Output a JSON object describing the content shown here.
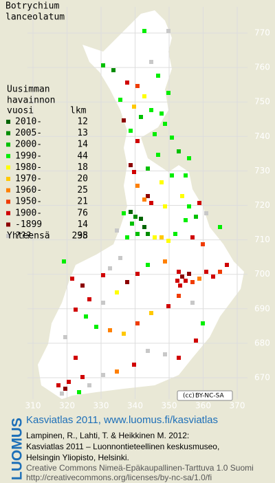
{
  "title": [
    "Botrychium",
    "lanceolatum"
  ],
  "legend": {
    "heading": [
      "Uusimman",
      "havainnon",
      "vuosi"
    ],
    "count_heading": "lkm",
    "rows": [
      {
        "label": "2010-",
        "count": 12,
        "color": "#006400"
      },
      {
        "label": "2005-",
        "count": 13,
        "color": "#008c00"
      },
      {
        "label": "2000-",
        "count": 14,
        "color": "#00c000"
      },
      {
        "label": "1990-",
        "count": 44,
        "color": "#00ee00"
      },
      {
        "label": "1980-",
        "count": 18,
        "color": "#ffff00"
      },
      {
        "label": "1970-",
        "count": 20,
        "color": "#ffc800"
      },
      {
        "label": "1960-",
        "count": 25,
        "color": "#ff8000"
      },
      {
        "label": "1950-",
        "count": 21,
        "color": "#f03c00"
      },
      {
        "label": "1900-",
        "count": 76,
        "color": "#d00000"
      },
      {
        "label": "-1899",
        "count": 14,
        "color": "#8c0000"
      },
      {
        "label": "???",
        "count": 38,
        "color": "#c8c8c8"
      }
    ],
    "total_label": "Yhteensä",
    "total": 295
  },
  "axes": {
    "y_labels": [
      770,
      760,
      750,
      740,
      730,
      720,
      710,
      700,
      690,
      680,
      670
    ],
    "x_labels": [
      310,
      320,
      330,
      340,
      350,
      360,
      370
    ]
  },
  "license_badge": "BY-NC-SA",
  "footer": {
    "logo": "LUOMUS",
    "link": "Kasviatlas 2011, www.luomus.fi/kasviatlas",
    "citation": [
      "Lampinen, R., Lahti, T. & Heikkinen M. 2012:",
      "Kasviatlas 2011 – Luonnontieteellinen keskusmuseo,",
      "Helsingin Yliopisto, Helsinki."
    ],
    "license": [
      "Creative Commons Nimeä-Epäkaupallinen-Tarttuva 1.0 Suomi",
      "http://creativecommons.org/licenses/by-nc-sa/1.0/fi"
    ]
  }
}
